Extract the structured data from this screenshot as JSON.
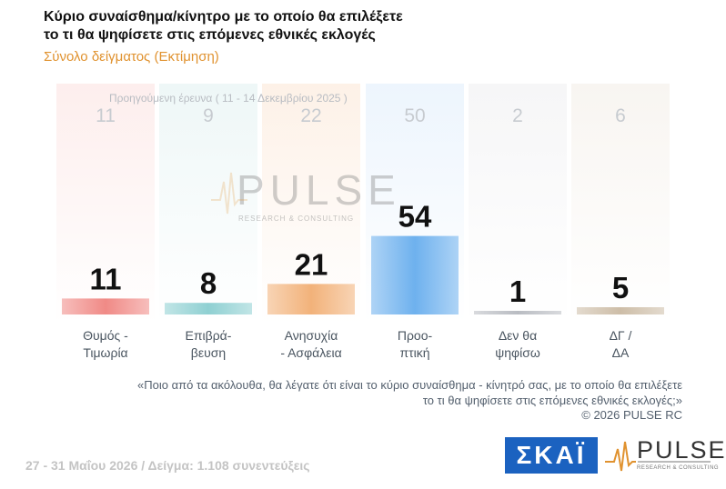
{
  "header": {
    "title_line1": "Κύριο συναίσθημα/κίνητρο με το οποίο θα επιλέξετε",
    "title_line2": "το τι θα ψηφίσετε στις επόμενες εθνικές εκλογές",
    "subtitle": "Σύνολο δείγματος (Εκτίμηση)"
  },
  "previous": {
    "label": "Προηγούμενη έρευνα ( 11 - 14 Δεκεμβρίου 2025 )",
    "values": [
      "11",
      "9",
      "22",
      "50",
      "2",
      "6"
    ]
  },
  "chart_data": {
    "type": "bar",
    "categories": [
      "Θυμός - Τιμωρία",
      "Επιβρά- βευση",
      "Ανησυχία - Ασφάλεια",
      "Προο- πτική",
      "Δεν θα ψηφίσω",
      "ΔΓ / ΔΑ"
    ],
    "category_lines": [
      [
        "Θυμός -",
        "Τιμωρία"
      ],
      [
        "Επιβρά-",
        "βευση"
      ],
      [
        "Ανησυχία",
        "- Ασφάλεια"
      ],
      [
        "Προο-",
        "πτική"
      ],
      [
        "Δεν θα",
        "ψηφίσω"
      ],
      [
        "ΔΓ /",
        "ΔΑ"
      ]
    ],
    "values": [
      11,
      8,
      21,
      54,
      1,
      5
    ],
    "previous_values": [
      11,
      9,
      22,
      50,
      2,
      6
    ],
    "colors": [
      "#f08a86",
      "#8fd0d2",
      "#f2b27a",
      "#6eb1ee",
      "#b9bcc2",
      "#cdbda7"
    ],
    "background_colors": [
      "#fdeeed",
      "#eef7f7",
      "#fdf1e7",
      "#edf5fd",
      "#f6f6f7",
      "#f8f5f1"
    ],
    "ylim": [
      0,
      100
    ]
  },
  "watermark": {
    "word": "PULSE",
    "sub": "RESEARCH & CONSULTING"
  },
  "note": {
    "question_line1": "«Ποιο από τα ακόλουθα, θα λέγατε ότι είναι το κύριο συναίσθημα - κίνητρό σας, με το οποίο θα επιλέξετε",
    "question_line2": "το τι θα ψηφίσετε στις επόμενες εθνικές εκλογές;»",
    "copyright": "©  2026  PULSE RC"
  },
  "footer": {
    "text": "27 - 31  Μαΐου 2026  /  Δείγμα:  1.108 συνεντεύξεις"
  },
  "logos": {
    "skai": "ΣΚΑΪ",
    "pulse": "PULSE",
    "pulse_sub": "RESEARCH & CONSULTING"
  }
}
